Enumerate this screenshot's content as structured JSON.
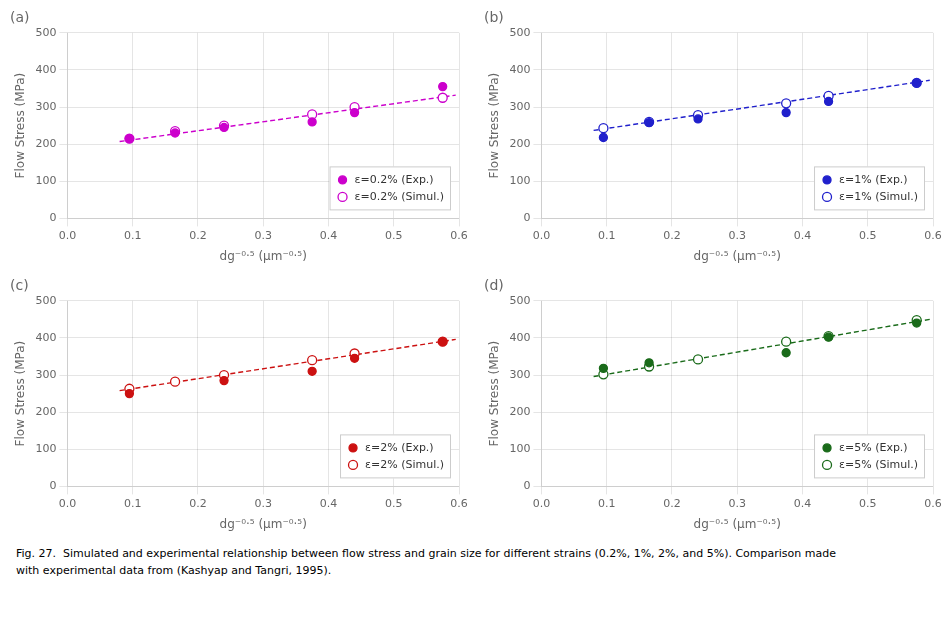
{
  "chart_data": [
    {
      "type": "scatter",
      "title": "(a)",
      "xlabel": "dg⁻⁰·⁵ (μm⁻⁰·⁵)",
      "ylabel": "Flow Stress (MPa)",
      "series": [
        {
          "name": "ε=0.2% (Exp.)",
          "color": "#CC00CC",
          "marker": "filled_circle",
          "x": [
            0.095,
            0.165,
            0.24,
            0.375,
            0.44,
            0.575
          ],
          "values": [
            215,
            230,
            245,
            260,
            285,
            355
          ]
        },
        {
          "name": "ε=0.2% (Simul.)",
          "color": "#CC00CC",
          "marker": "open_circle",
          "x": [
            0.095,
            0.165,
            0.24,
            0.375,
            0.44,
            0.575
          ],
          "values": [
            215,
            235,
            250,
            280,
            300,
            325
          ]
        },
        {
          "type": "line",
          "line_style": "dashed",
          "color": "#CC00CC",
          "x": [
            0.08,
            0.595
          ],
          "values": [
            207,
            332
          ]
        }
      ],
      "xlim": [
        0.0,
        0.6
      ],
      "xticks": [
        {
          "value": 0,
          "label": "0.0"
        },
        0.1,
        0.2,
        0.3,
        0.4,
        0.5,
        0.6
      ],
      "ylim": [
        0,
        500
      ],
      "yticks": [
        0,
        100,
        200,
        300,
        400,
        500
      ],
      "grid": true,
      "legend": "lower right"
    },
    {
      "type": "scatter",
      "title": "(b)",
      "xlabel": "dg⁻⁰·⁵ (μm⁻⁰·⁵)",
      "ylabel": "Flow Stress (MPa)",
      "series": [
        {
          "name": "ε=1% (Exp.)",
          "color": "#2020CC",
          "marker": "filled_circle",
          "x": [
            0.095,
            0.165,
            0.24,
            0.375,
            0.44,
            0.575
          ],
          "values": [
            218,
            258,
            268,
            285,
            315,
            365
          ]
        },
        {
          "name": "ε=1% (Simul.)",
          "color": "#2020CC",
          "marker": "open_circle",
          "x": [
            0.095,
            0.165,
            0.24,
            0.375,
            0.44,
            0.575
          ],
          "values": [
            243,
            260,
            278,
            310,
            330,
            365
          ]
        },
        {
          "type": "line",
          "line_style": "dashed",
          "color": "#2020CC",
          "x": [
            0.08,
            0.595
          ],
          "values": [
            237,
            372
          ]
        }
      ],
      "xlim": [
        0.0,
        0.6
      ],
      "xticks": [
        {
          "value": 0,
          "label": "0.0"
        },
        0.1,
        0.2,
        0.3,
        0.4,
        0.5,
        0.6
      ],
      "ylim": [
        0,
        500
      ],
      "yticks": [
        0,
        100,
        200,
        300,
        400,
        500
      ],
      "grid": true,
      "legend": "lower right"
    },
    {
      "type": "scatter",
      "title": "(c)",
      "xlabel": "dg⁻⁰·⁵ (μm⁻⁰·⁵)",
      "ylabel": "Flow Stress (MPa)",
      "series": [
        {
          "name": "ε=2% (Exp.)",
          "color": "#CC1111",
          "marker": "filled_circle",
          "x": [
            0.095,
            0.24,
            0.375,
            0.44,
            0.575
          ],
          "values": [
            250,
            285,
            310,
            345,
            390
          ]
        },
        {
          "name": "ε=2% (Simul.)",
          "color": "#CC1111",
          "marker": "open_circle",
          "x": [
            0.095,
            0.165,
            0.24,
            0.375,
            0.44,
            0.575
          ],
          "values": [
            263,
            282,
            300,
            340,
            358,
            390
          ]
        },
        {
          "type": "line",
          "line_style": "dashed",
          "color": "#CC1111",
          "x": [
            0.08,
            0.595
          ],
          "values": [
            258,
            396
          ]
        }
      ],
      "xlim": [
        0.0,
        0.6
      ],
      "xticks": [
        {
          "value": 0,
          "label": "0.0"
        },
        0.1,
        0.2,
        0.3,
        0.4,
        0.5,
        0.6
      ],
      "ylim": [
        0,
        500
      ],
      "yticks": [
        0,
        100,
        200,
        300,
        400,
        500
      ],
      "grid": true,
      "legend": "lower right"
    },
    {
      "type": "scatter",
      "title": "(d)",
      "xlabel": "dg⁻⁰·⁵ (μm⁻⁰·⁵)",
      "ylabel": "Flow Stress (MPa)",
      "series": [
        {
          "name": "ε=5% (Exp.)",
          "color": "#1A6B1A",
          "marker": "filled_circle",
          "x": [
            0.095,
            0.165,
            0.375,
            0.44,
            0.575
          ],
          "values": [
            318,
            333,
            360,
            402,
            440
          ]
        },
        {
          "name": "ε=5% (Simul.)",
          "color": "#1A6B1A",
          "marker": "open_circle",
          "x": [
            0.095,
            0.165,
            0.24,
            0.375,
            0.44,
            0.575
          ],
          "values": [
            302,
            323,
            342,
            390,
            405,
            448
          ]
        },
        {
          "type": "line",
          "line_style": "dashed",
          "color": "#1A6B1A",
          "x": [
            0.08,
            0.595
          ],
          "values": [
            296,
            450
          ]
        }
      ],
      "xlim": [
        0.0,
        0.6
      ],
      "xticks": [
        {
          "value": 0,
          "label": "0.0"
        },
        0.1,
        0.2,
        0.3,
        0.4,
        0.5,
        0.6
      ],
      "ylim": [
        0,
        500
      ],
      "yticks": [
        0,
        100,
        200,
        300,
        400,
        500
      ],
      "grid": true,
      "legend": "lower right"
    }
  ],
  "caption": [
    "Fig. 27.  Simulated and experimental relationship between flow stress and grain size for different strains (0.2%, 1%, 2%, and 5%). Comparison made",
    "with experimental data from (Kashyap and Tangri, 1995)."
  ]
}
